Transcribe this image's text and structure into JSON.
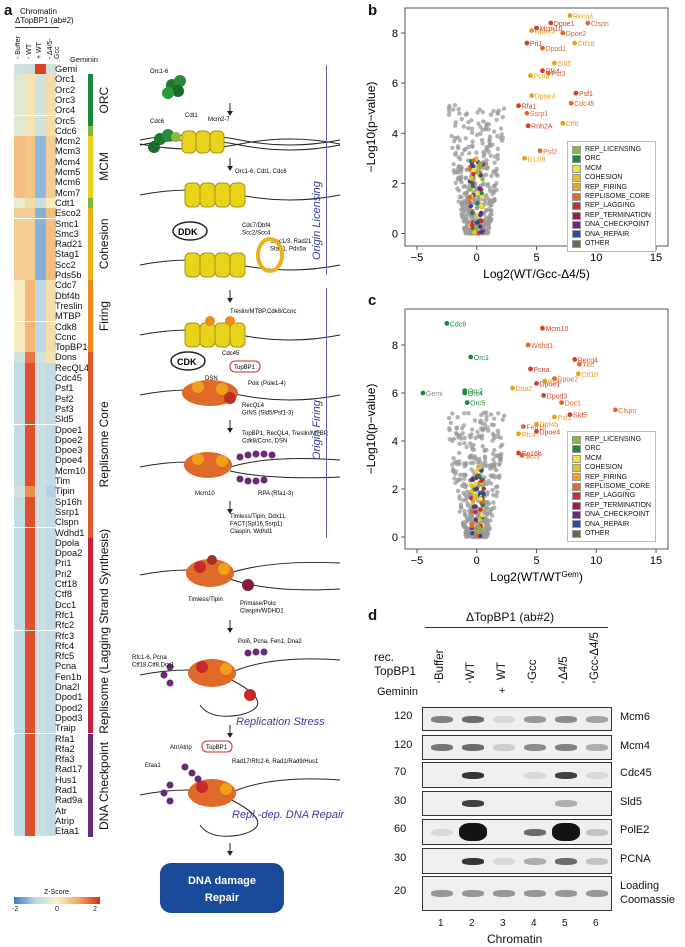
{
  "panels": {
    "a": "a",
    "b": "b",
    "c": "c",
    "d": "d"
  },
  "heatmap": {
    "header_title": "Chromatin",
    "header_subtitle": "ΔTopBP1 (ab#2)",
    "columns": [
      "Buffer",
      "WT",
      "WT",
      "Δ4/5-Gcc"
    ],
    "column_marks": [
      "-",
      "-",
      "+",
      "-"
    ],
    "geminin_label": "Geminin",
    "genes": [
      "Gemi",
      "Orc1",
      "Orc2",
      "Orc3",
      "Orc4",
      "Orc5",
      "Cdc6",
      "Mcm2",
      "Mcm3",
      "Mcm4",
      "Mcm5",
      "Mcm6",
      "Mcm7",
      "Cdt1",
      "Esco2",
      "Smc1",
      "Smc3",
      "Rad21",
      "Stag1",
      "Scc2",
      "Pds5b",
      "Cdc7",
      "Dbf4b",
      "Treslin",
      "MTBP",
      "Cdk8",
      "Ccnc",
      "TopBP1",
      "Dons",
      "RecQL4",
      "Cdc45",
      "Psf1",
      "Psf2",
      "Psf3",
      "Sld5",
      "Dpoe1",
      "Dpoe2",
      "Dpoe3",
      "Dpoe4",
      "Mcm10",
      "Tim",
      "Tipin",
      "Sp16h",
      "Ssrp1",
      "Clspn",
      "Wdhd1",
      "Dpola",
      "Dpoa2",
      "Pri1",
      "Pri2",
      "Ctf18",
      "Ctf8",
      "Dcc1",
      "Rfc1",
      "Rfc2",
      "Rfc3",
      "Rfc4",
      "Rfc5",
      "Pcna",
      "Fen1b",
      "Dna2l",
      "Dpod1",
      "Dpod2",
      "Dpod3",
      "Traip",
      "Rfa1",
      "Rfa2",
      "Rfa3",
      "Rad17",
      "Hus1",
      "Rad1",
      "Rad9a",
      "Atr",
      "Atrip",
      "Etaa1"
    ],
    "zscore_label": "Z-Score",
    "zscore_ticks": [
      "-2",
      "0",
      "2"
    ]
  },
  "categories": [
    {
      "label": "ORC",
      "color": "#1a8a3a"
    },
    {
      "label": "MCM",
      "color": "#e8d21a"
    },
    {
      "label": "Cohesion",
      "color": "#e8b21a"
    },
    {
      "label": "Firing",
      "color": "#f08a1a"
    },
    {
      "label": "Replisome Core",
      "color": "#e0562a"
    },
    {
      "label": "Replisome (Lagging Strand Synthesis)",
      "color": "#c8203a"
    },
    {
      "label": "DNA Checkpoint",
      "color": "#6a2a7a"
    }
  ],
  "pathway": {
    "orc": "Orc1-6",
    "cdc6": "Cdc6",
    "cdt1": "Cdt1",
    "mcm27": "Mcm2-7",
    "release": "Orc1-6, Cdt1, Cdc6",
    "ddk": "DDK",
    "cohesin1": "Cdc7/Dbf4\nScc2/Scc4",
    "cohesin2": "Smc1/3, Rad21\nStag1, Pds5a",
    "firing1": "Treslin/MTBP,Cdk8/Ccnc",
    "cdc45": "Cdc45",
    "cdk": "CDK",
    "topbp1": "TopBP1",
    "dsn": "DSN",
    "pole": "Polε (Pole1-4)",
    "recql4": "RecQL4\nGINS (Sld5/Psf1-3)",
    "release2": "TopBP1, RecQL4, Treslin/MTBP,\nCdk8/Ccnc, DSN",
    "mcm10": "Mcm10",
    "rpa": "RPA (Rfa1-3)",
    "timeless": "Timless/Tipin, Ddx11,\nFACT(Spt16,Ssrp1)\nClaspin, Wdhd1",
    "timless_lbl": "Timless/Tipin",
    "primase": "Primase/Polα\nClaspin/WDHD1",
    "lagging": "Polδ, Pcna, Fen1, Dna2",
    "rfc": "Rfc1-6, Pcna\nCtf18,Ctf8,Dcc1",
    "atr": "Atr/Atrip",
    "topbp1b": "TopBP1",
    "etaa1": "Etaa1",
    "checkpoint": "Rad17/Rfc2-6, Rad1/Rad9/Hus1",
    "origin_licensing": "Origin Licensing",
    "origin_firing": "Origin Firing",
    "replication_stress": "Replication Stress",
    "repl_dna_repair": "Repl.-dep. DNA Repair",
    "damage_box": "DNA damage\nRepair"
  },
  "legend": {
    "items": [
      {
        "label": "REP_LICENSING",
        "color": "#8ab83a"
      },
      {
        "label": "ORC",
        "color": "#1a8a3a"
      },
      {
        "label": "MCM",
        "color": "#f0e23a"
      },
      {
        "label": "COHESION",
        "color": "#e8c21a"
      },
      {
        "label": "REP_FIRING",
        "color": "#f0a01a"
      },
      {
        "label": "REPLISOME_CORE",
        "color": "#e06a2a"
      },
      {
        "label": "REP_LAGGING",
        "color": "#d02a3a"
      },
      {
        "label": "REP_TERMINATION",
        "color": "#a01a4a"
      },
      {
        "label": "DNA_CHECKPOINT",
        "color": "#6a2a7a"
      },
      {
        "label": "DNA_REPAIR",
        "color": "#2a4aa0"
      },
      {
        "label": "OTHER",
        "color": "#6a6a4a"
      }
    ]
  },
  "chart_data": [
    {
      "type": "scatter",
      "panel": "b",
      "xlabel": "Log2(WT/Gcc-Δ4/5)",
      "ylabel": "−Log10(p−value)",
      "xlim": [
        -6,
        16
      ],
      "ylim": [
        -0.5,
        9
      ],
      "xticks": [
        "−5",
        "0",
        "5",
        "10",
        "15"
      ],
      "yticks": [
        "0",
        "2",
        "4",
        "6",
        "8"
      ],
      "labeled_points": [
        {
          "label": "Recq4",
          "x": 7.8,
          "y": 8.7
        },
        {
          "label": "Dpoe1",
          "x": 6.2,
          "y": 8.4
        },
        {
          "label": "Clspn",
          "x": 9.3,
          "y": 8.4
        },
        {
          "label": "Dpoe3",
          "x": 4.6,
          "y": 8.1
        },
        {
          "label": "Mcm10",
          "x": 5.0,
          "y": 8.2
        },
        {
          "label": "Dpoe2",
          "x": 7.2,
          "y": 8.0
        },
        {
          "label": "Ctf18",
          "x": 8.2,
          "y": 7.6
        },
        {
          "label": "Pri1",
          "x": 4.2,
          "y": 7.6
        },
        {
          "label": "Dpod1",
          "x": 5.5,
          "y": 7.4
        },
        {
          "label": "Sld5",
          "x": 6.5,
          "y": 6.8
        },
        {
          "label": "Rfc4",
          "x": 5.5,
          "y": 6.5
        },
        {
          "label": "Psf3",
          "x": 6.0,
          "y": 6.4
        },
        {
          "label": "Pcna",
          "x": 4.5,
          "y": 6.3
        },
        {
          "label": "Psf1",
          "x": 8.3,
          "y": 5.6
        },
        {
          "label": "Cdc45",
          "x": 7.9,
          "y": 5.2
        },
        {
          "label": "Dpoe4",
          "x": 4.6,
          "y": 5.5
        },
        {
          "label": "Rfa1",
          "x": 3.5,
          "y": 5.1
        },
        {
          "label": "Ssrp1",
          "x": 4.2,
          "y": 4.8
        },
        {
          "label": "Ctf8",
          "x": 7.2,
          "y": 4.4
        },
        {
          "label": "Rnh2A",
          "x": 4.3,
          "y": 4.3
        },
        {
          "label": "Psf2",
          "x": 5.3,
          "y": 3.3
        },
        {
          "label": "D11l8",
          "x": 4.0,
          "y": 3.0
        }
      ]
    },
    {
      "type": "scatter",
      "panel": "c",
      "xlabel": "Log2(WT/WT^Gem)",
      "ylabel": "−Log10(p−value)",
      "xlim": [
        -6,
        16
      ],
      "ylim": [
        -0.5,
        9.5
      ],
      "xticks": [
        "−5",
        "0",
        "5",
        "10",
        "15"
      ],
      "yticks": [
        "0",
        "2",
        "4",
        "6",
        "8"
      ],
      "labeled_points": [
        {
          "label": "Cdc6",
          "x": -2.5,
          "y": 8.9
        },
        {
          "label": "Mcm10",
          "x": 5.5,
          "y": 8.7
        },
        {
          "label": "Wdhd1",
          "x": 4.3,
          "y": 8.0
        },
        {
          "label": "Orc1",
          "x": -0.5,
          "y": 7.5
        },
        {
          "label": "Recq4",
          "x": 8.2,
          "y": 7.4
        },
        {
          "label": "Tim",
          "x": 8.6,
          "y": 7.2
        },
        {
          "label": "Ctf18",
          "x": 8.5,
          "y": 6.8
        },
        {
          "label": "Pcna",
          "x": 4.5,
          "y": 7.0
        },
        {
          "label": "Dpoe2",
          "x": 6.5,
          "y": 6.6
        },
        {
          "label": "Psf3",
          "x": 5.7,
          "y": 6.5
        },
        {
          "label": "Dpoe1",
          "x": 5.0,
          "y": 6.4
        },
        {
          "label": "Gemi",
          "x": -4.5,
          "y": 6.0
        },
        {
          "label": "Orc2",
          "x": -1.0,
          "y": 6.1
        },
        {
          "label": "Orc4",
          "x": -1.0,
          "y": 6.0
        },
        {
          "label": "Orc5",
          "x": -0.8,
          "y": 5.6
        },
        {
          "label": "Dna2",
          "x": 3.0,
          "y": 6.2
        },
        {
          "label": "Dpod3",
          "x": 5.6,
          "y": 5.9
        },
        {
          "label": "Doc1",
          "x": 7.1,
          "y": 5.6
        },
        {
          "label": "Psf1",
          "x": 6.5,
          "y": 5.0
        },
        {
          "label": "Sld5",
          "x": 7.8,
          "y": 5.1
        },
        {
          "label": "Clspn",
          "x": 11.6,
          "y": 5.3
        },
        {
          "label": "Dbf4b",
          "x": 5.0,
          "y": 4.7
        },
        {
          "label": "Dpoe4",
          "x": 5.0,
          "y": 4.4
        },
        {
          "label": "Fen1b",
          "x": 3.9,
          "y": 4.6
        },
        {
          "label": "Rfc4",
          "x": 3.5,
          "y": 4.3
        },
        {
          "label": "Sp16h",
          "x": 3.5,
          "y": 3.5
        },
        {
          "label": "Scc2",
          "x": 3.8,
          "y": 3.4
        }
      ]
    }
  ],
  "western": {
    "header": "ΔTopBP1 (ab#2)",
    "rec_label": "rec.\nTopBP1",
    "geminin_label": "Geminin",
    "lanes": [
      "Buffer",
      "WT",
      "WT",
      "Gcc",
      "Δ4/5",
      "Gcc-Δ4/5"
    ],
    "geminin_marks": [
      "-",
      "-",
      "+",
      "-",
      "-",
      "-"
    ],
    "lane_numbers": [
      "1",
      "2",
      "3",
      "4",
      "5",
      "6"
    ],
    "chromatin_label": "Chromatin",
    "blots": [
      {
        "mw": "120",
        "label": "Mcm6"
      },
      {
        "mw": "120",
        "label": "Mcm4"
      },
      {
        "mw": "70",
        "label": "Cdc45"
      },
      {
        "mw": "30",
        "label": "Sld5"
      },
      {
        "mw": "60",
        "label": "PolE2"
      },
      {
        "mw": "30",
        "label": "PCNA"
      },
      {
        "mw": "20",
        "label": "Loading\nCoomassie"
      }
    ]
  }
}
